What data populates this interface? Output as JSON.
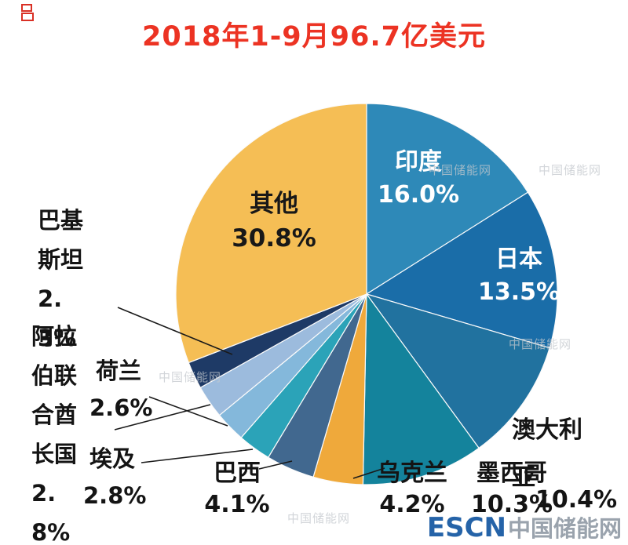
{
  "chart_data": {
    "type": "pie",
    "title": "2018年1-9月96.7亿美元",
    "title_color": "#EC3323",
    "start_angle_deg": 0,
    "direction": "clockwise",
    "legend_position": "none",
    "slices": [
      {
        "id": "india",
        "name": "印度",
        "value": 16.0,
        "pct_label": "16.0%",
        "color": "#2E89B8",
        "label_placement": "inside"
      },
      {
        "id": "japan",
        "name": "日本",
        "value": 13.5,
        "pct_label": "13.5%",
        "color": "#1A6DA8",
        "label_placement": "inside"
      },
      {
        "id": "australia",
        "name": "澳大利亚",
        "value": 10.4,
        "pct_label": "10.4%",
        "color": "#21729F",
        "label_placement": "outside"
      },
      {
        "id": "mexico",
        "name": "墨西哥",
        "value": 10.3,
        "pct_label": "10.3%",
        "color": "#14839C",
        "label_placement": "outside"
      },
      {
        "id": "ukraine",
        "name": "乌克兰",
        "value": 4.2,
        "pct_label": "4.2%",
        "color": "#EFA93B",
        "label_placement": "outside"
      },
      {
        "id": "brazil",
        "name": "巴西",
        "value": 4.1,
        "pct_label": "4.1%",
        "color": "#41688F",
        "label_placement": "outside"
      },
      {
        "id": "egypt",
        "name": "埃及",
        "value": 2.8,
        "pct_label": "2.8%",
        "color": "#2BA3B8",
        "label_placement": "outside"
      },
      {
        "id": "netherlands",
        "name": "荷兰",
        "value": 2.6,
        "pct_label": "2.6%",
        "color": "#84B8DB",
        "label_placement": "outside"
      },
      {
        "id": "uae",
        "name": "阿拉伯联合酋长国",
        "value": 2.8,
        "pct_label": "2.8%",
        "color": "#9CBBDD",
        "label_placement": "outside"
      },
      {
        "id": "pakistan",
        "name": "巴基斯坦",
        "value": 2.3,
        "pct_label": "2.3%",
        "color": "#1E3A66",
        "label_placement": "outside"
      },
      {
        "id": "others",
        "name": "其他",
        "value": 30.8,
        "pct_label": "30.8%",
        "color": "#F5BE55",
        "label_placement": "inside"
      }
    ]
  },
  "watermark": {
    "text": "中国储能网",
    "color": "#c3c8cd"
  },
  "footer": {
    "brand": "ESCN",
    "suffix": "中国储能网",
    "brand_color": "#2563A8",
    "suffix_color": "#9AA3AD"
  }
}
